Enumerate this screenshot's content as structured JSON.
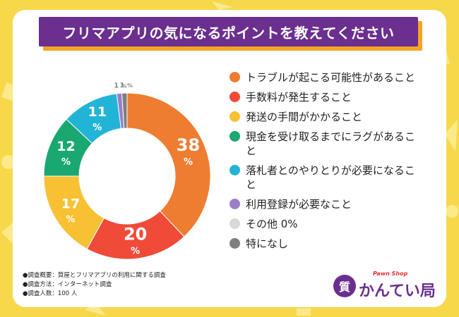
{
  "title": "フリマアプリの気になるポイントを教えてください",
  "colors": {
    "background": "#f7d84a",
    "title_bar": "#6b2f8f",
    "title_shadow": "#f5a623"
  },
  "chart_data": {
    "type": "pie",
    "style": "donut",
    "unit": "%",
    "slices": [
      {
        "label": "トラブルが起こる可能性があること",
        "value": 38,
        "color": "#ee7d31"
      },
      {
        "label": "手数料が発生すること",
        "value": 20,
        "color": "#f04a38"
      },
      {
        "label": "発送の手間がかかること",
        "value": 17,
        "color": "#f7c133"
      },
      {
        "label": "現金を受け取るまでにラグがあること",
        "value": 12,
        "color": "#1aa770"
      },
      {
        "label": "落札者とのやりとりが必要になること",
        "value": 11,
        "color": "#22b4d7"
      },
      {
        "label": "利用登録が必要なこと",
        "value": 1,
        "color": "#9b7ec7"
      },
      {
        "label": "その他",
        "value": 0,
        "color": "#d9d9d9"
      },
      {
        "label": "特になし",
        "value": 1,
        "color": "#7f7f7f"
      }
    ],
    "value_labels": [
      "38",
      "20",
      "17",
      "12",
      "11",
      "1",
      "",
      "1"
    ],
    "legend": [
      {
        "text": "トラブルが起こる可能性があること",
        "color": "#ee7d31"
      },
      {
        "text": "手数料が発生すること",
        "color": "#f04a38"
      },
      {
        "text": "発送の手間がかかること",
        "color": "#f7c133"
      },
      {
        "text": "現金を受け取るまでにラグがあること",
        "color": "#1aa770"
      },
      {
        "text": "落札者とのやりとりが必要になること",
        "color": "#22b4d7"
      },
      {
        "text": "利用登録が必要なこと",
        "color": "#9b7ec7"
      },
      {
        "text": "その他 0%",
        "color": "#d9d9d9"
      },
      {
        "text": "特になし",
        "color": "#7f7f7f"
      }
    ]
  },
  "notes": [
    "●調査概要：質屋とフリマアプリの利用に関する調査",
    "●調査方法：インターネット調査",
    "●調査人数：100 人"
  ],
  "logo": {
    "circle_text": "質",
    "sub": "Pawn Shop",
    "main": "かんてい局"
  }
}
